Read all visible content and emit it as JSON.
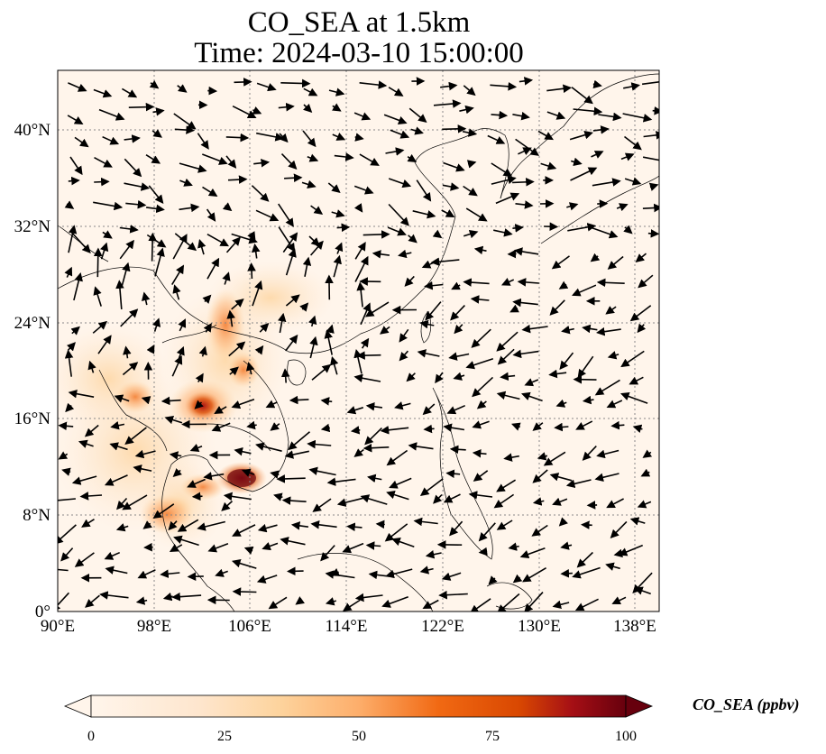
{
  "title_line1": "CO_SEA at 1.5km",
  "title_line2": "Time: 2024-03-10 15:00:00",
  "map": {
    "lon_range": [
      90,
      140
    ],
    "lat_range": [
      0,
      45
    ],
    "gridlines": "dotted",
    "lon_ticks": [
      "90°E",
      "98°E",
      "106°E",
      "114°E",
      "122°E",
      "130°E",
      "138°E"
    ],
    "lat_ticks": [
      "0°",
      "8°N",
      "16°N",
      "24°N",
      "32°N",
      "40°N"
    ],
    "variable": "CO_SEA",
    "level": "1.5km",
    "vectors": "wind arrows"
  },
  "colorbar": {
    "label": "CO_SEA (ppbv)",
    "ticks": [
      "0",
      "25",
      "50",
      "75",
      "100"
    ],
    "range": [
      0,
      100
    ],
    "extend": "both",
    "colormap": [
      "#fff5eb",
      "#fdd49e",
      "#fdae6b",
      "#f16913",
      "#d94801",
      "#a50f15",
      "#67000d"
    ]
  }
}
